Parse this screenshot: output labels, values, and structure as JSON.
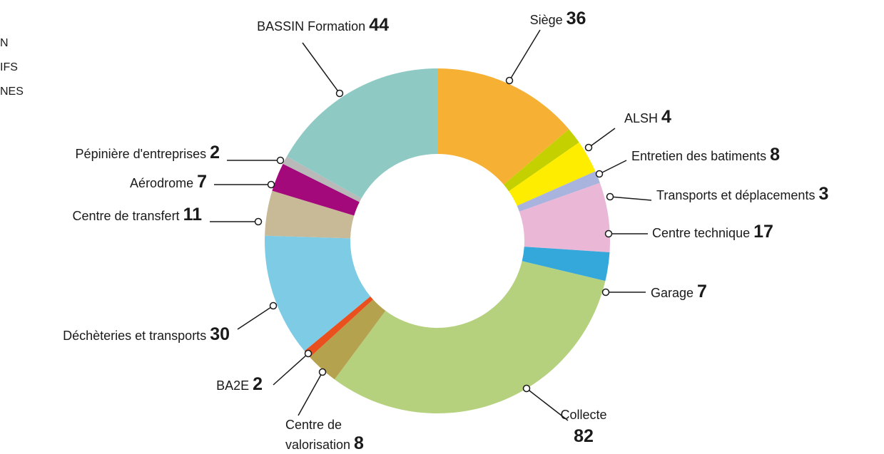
{
  "side_text": [
    "N",
    "IFS",
    "NES"
  ],
  "chart_data": {
    "type": "donut",
    "categories": [
      "Siège",
      "ALSH",
      "Entretien des batiments",
      "Transports et déplacements",
      "Centre technique",
      "Garage",
      "Collecte",
      "Centre de valorisation",
      "BA2E",
      "Déchèteries et transports",
      "Centre de transfert",
      "Aérodrome",
      "Pépinière d'entreprises",
      "BASSIN Formation"
    ],
    "values": [
      36,
      4,
      8,
      3,
      17,
      7,
      82,
      8,
      2,
      30,
      11,
      7,
      2,
      44
    ],
    "colors": [
      "#f6b135",
      "#c5d000",
      "#ffed00",
      "#a8b3de",
      "#eab8d6",
      "#35a8db",
      "#b5d17e",
      "#b5a24e",
      "#e9501e",
      "#7ecbe5",
      "#c8b997",
      "#a3097a",
      "#b9b9b9",
      "#8ecac3"
    ]
  }
}
